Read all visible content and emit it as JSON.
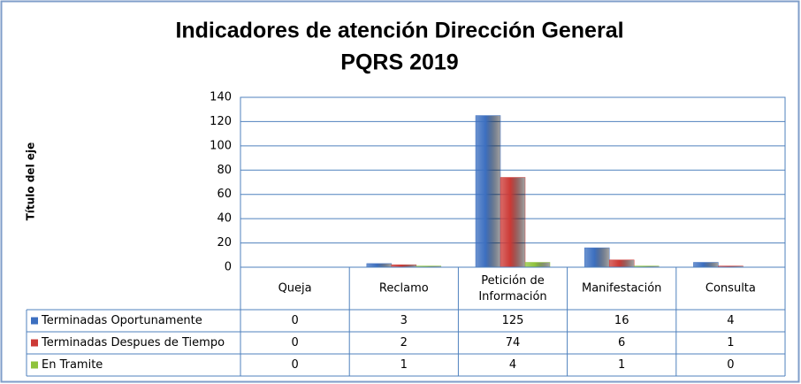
{
  "chart_data": {
    "type": "bar",
    "title": "Indicadores de atención Dirección General",
    "subtitle": "PQRS 2019",
    "y_label": "Título del eje",
    "categories": [
      "Queja",
      "Reclamo",
      "Petición de Información",
      "Manifestación",
      "Consulta"
    ],
    "series": [
      {
        "name": "Terminadas Oportunamente",
        "color": "#3c6fc0",
        "values": [
          0,
          3,
          125,
          16,
          4
        ]
      },
      {
        "name": "Terminadas Despues de Tiempo",
        "color": "#cc3a36",
        "values": [
          0,
          2,
          74,
          6,
          1
        ]
      },
      {
        "name": "En Tramite",
        "color": "#8fc33c",
        "values": [
          0,
          1,
          4,
          1,
          0
        ]
      }
    ],
    "ylim": [
      0,
      140
    ],
    "yticks": [
      0,
      20,
      40,
      60,
      80,
      100,
      120,
      140
    ],
    "grid": true
  }
}
